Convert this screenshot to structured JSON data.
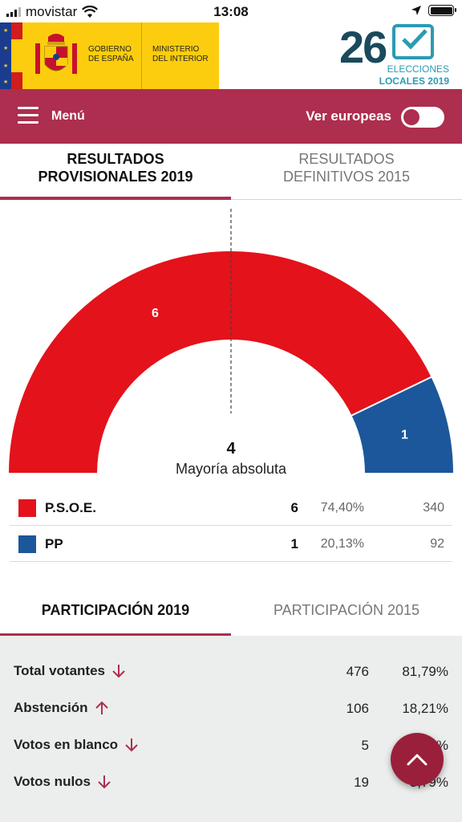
{
  "status_bar": {
    "carrier": "movistar",
    "time": "13:08"
  },
  "header": {
    "gov_line1": "GOBIERNO",
    "gov_line2": "DE ESPAÑA",
    "ministry_line1": "MINISTERIO",
    "ministry_line2": "DEL INTERIOR",
    "elections_number": "26",
    "elections_line1": "ELECCIONES",
    "elections_line2": "LOCALES 2019"
  },
  "menu_bar": {
    "menu_label": "Menú",
    "toggle_label": "Ver europeas",
    "toggle_on": false
  },
  "results_tabs": [
    {
      "label": "RESULTADOS PROVISIONALES 2019",
      "active": true
    },
    {
      "label": "RESULTADOS DEFINITIVOS 2015",
      "active": false
    }
  ],
  "chart_data": {
    "type": "pie",
    "variant": "half-donut seats",
    "categories": [
      "P.S.O.E.",
      "PP"
    ],
    "values": [
      6,
      1
    ],
    "colors": [
      "#e3121b",
      "#1c579b"
    ],
    "center_value": "4",
    "center_label": "Mayoría absoluta"
  },
  "parties": [
    {
      "name": "P.S.O.E.",
      "seats": "6",
      "pct": "74,40%",
      "votes": "340",
      "color": "#e3121b"
    },
    {
      "name": "PP",
      "seats": "1",
      "pct": "20,13%",
      "votes": "92",
      "color": "#1c579b"
    }
  ],
  "participation_tabs": [
    {
      "label": "PARTICIPACIÓN 2019",
      "active": true
    },
    {
      "label": "PARTICIPACIÓN 2015",
      "active": false
    }
  ],
  "participation": [
    {
      "label": "Total votantes",
      "trend": "down",
      "count": "476",
      "pct": "81,79%"
    },
    {
      "label": "Abstención",
      "trend": "up",
      "count": "106",
      "pct": "18,21%"
    },
    {
      "label": "Votos en blanco",
      "trend": "down",
      "count": "5",
      "pct": "0,86%"
    },
    {
      "label": "Votos nulos",
      "trend": "down",
      "count": "19",
      "pct": "3,79%"
    }
  ],
  "colors": {
    "accent": "#ad2e4e",
    "psoe": "#e3121b",
    "pp": "#1c579b",
    "fab": "#9a1f3a"
  }
}
